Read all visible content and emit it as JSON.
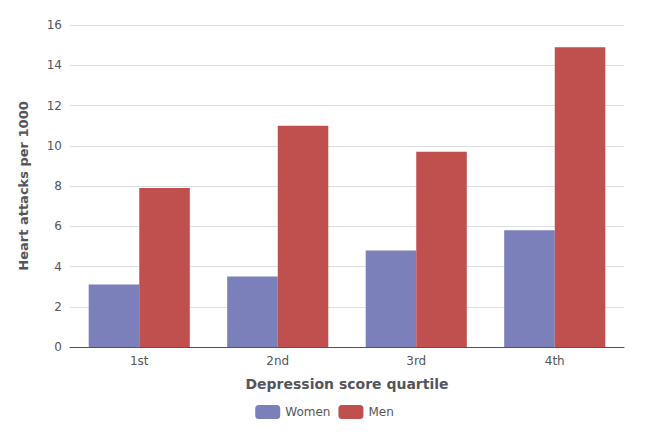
{
  "chart_data": {
    "type": "bar",
    "categories": [
      "1st",
      "2nd",
      "3rd",
      "4th"
    ],
    "series": [
      {
        "name": "Women",
        "color": "#7b7fba",
        "values": [
          3.1,
          3.5,
          4.8,
          5.8
        ]
      },
      {
        "name": "Men",
        "color": "#c0504d",
        "values": [
          7.9,
          11.0,
          9.7,
          14.9
        ]
      }
    ],
    "xlabel": "Depression score quartile",
    "ylabel": "Heart attacks per 1000",
    "ylim": [
      0,
      16
    ],
    "yticks": [
      0,
      2,
      4,
      6,
      8,
      10,
      12,
      14,
      16
    ],
    "grid": true,
    "legend": "bottom"
  }
}
